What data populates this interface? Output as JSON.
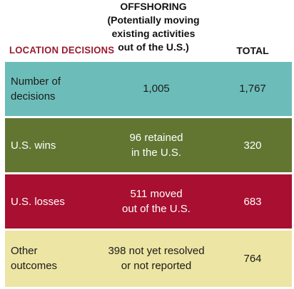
{
  "colors": {
    "header_label": "#9a1a2e",
    "row1_bg": "#6cbdb9",
    "row2_bg": "#627632",
    "row3_bg": "#a80f30",
    "row4_bg": "#ede5a3"
  },
  "header": {
    "label": "LOCATION DECISIONS",
    "offshoring_title": "OFFSHORING",
    "offshoring_sub1": "(Potentially moving",
    "offshoring_sub2": "existing activities",
    "offshoring_sub3": "out of the U.S.)",
    "total": "TOTAL"
  },
  "rows": [
    {
      "label1": "Number of",
      "label2": "decisions",
      "mid1": "1,005",
      "mid2": "",
      "total": "1,767"
    },
    {
      "label1": "U.S. wins",
      "label2": "",
      "mid1": "96 retained",
      "mid2": "in the U.S.",
      "total": "320"
    },
    {
      "label1": "U.S. losses",
      "label2": "",
      "mid1": "511 moved",
      "mid2": "out of the U.S.",
      "total": "683"
    },
    {
      "label1": "Other",
      "label2": "outcomes",
      "mid1": "398 not yet resolved",
      "mid2": "or not reported",
      "total": "764"
    }
  ]
}
